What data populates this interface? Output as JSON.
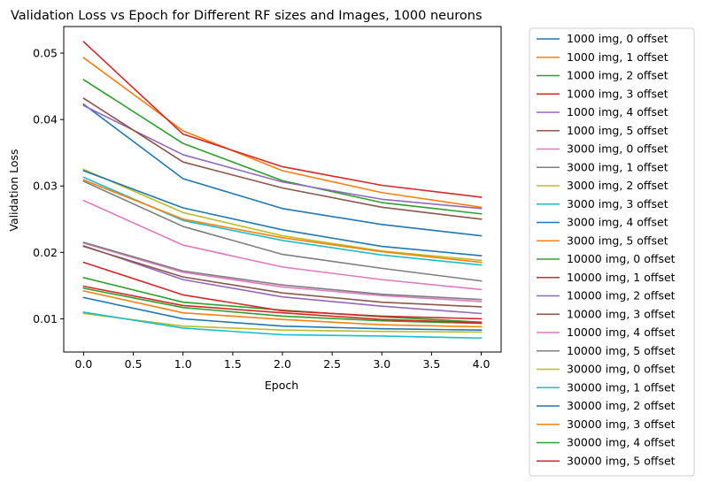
{
  "chart_data": {
    "type": "line",
    "title": "Validation Loss vs Epoch for Different RF sizes and Images, 1000 neurons",
    "xlabel": "Epoch",
    "ylabel": "Validation Loss",
    "xlim": [
      -0.2,
      4.2
    ],
    "ylim": [
      0.005,
      0.054
    ],
    "xticks": [
      0.0,
      0.5,
      1.0,
      1.5,
      2.0,
      2.5,
      3.0,
      3.5,
      4.0
    ],
    "xtick_labels": [
      "0.0",
      "0.5",
      "1.0",
      "1.5",
      "2.0",
      "2.5",
      "3.0",
      "3.5",
      "4.0"
    ],
    "yticks": [
      0.01,
      0.02,
      0.03,
      0.04,
      0.05
    ],
    "ytick_labels": [
      "0.01",
      "0.02",
      "0.03",
      "0.04",
      "0.05"
    ],
    "grid": false,
    "legend_position": "outside-right",
    "x": [
      0,
      1,
      2,
      3,
      4
    ],
    "series": [
      {
        "name": "1000 img, 0 offset",
        "color": "#1f77b4",
        "values": [
          0.0423,
          0.0311,
          0.0266,
          0.0242,
          0.0225
        ]
      },
      {
        "name": "1000 img, 1 offset",
        "color": "#ff7f0e",
        "values": [
          0.0493,
          0.0383,
          0.0323,
          0.029,
          0.0268
        ]
      },
      {
        "name": "1000 img, 2 offset",
        "color": "#2ca02c",
        "values": [
          0.046,
          0.0364,
          0.0308,
          0.0275,
          0.0258
        ]
      },
      {
        "name": "1000 img, 3 offset",
        "color": "#d62728",
        "values": [
          0.0517,
          0.0378,
          0.0329,
          0.0301,
          0.0283
        ]
      },
      {
        "name": "1000 img, 4 offset",
        "color": "#9467bd",
        "values": [
          0.0421,
          0.0347,
          0.0306,
          0.028,
          0.0266
        ]
      },
      {
        "name": "1000 img, 5 offset",
        "color": "#8c564b",
        "values": [
          0.0432,
          0.0336,
          0.0297,
          0.0268,
          0.025
        ]
      },
      {
        "name": "3000 img, 0 offset",
        "color": "#e377c2",
        "values": [
          0.0278,
          0.0211,
          0.0178,
          0.0159,
          0.0144
        ]
      },
      {
        "name": "3000 img, 1 offset",
        "color": "#7f7f7f",
        "values": [
          0.0307,
          0.0239,
          0.0197,
          0.0176,
          0.0157
        ]
      },
      {
        "name": "3000 img, 2 offset",
        "color": "#bcbd22",
        "values": [
          0.0325,
          0.026,
          0.0225,
          0.0202,
          0.0188
        ]
      },
      {
        "name": "3000 img, 3 offset",
        "color": "#17becf",
        "values": [
          0.0313,
          0.0248,
          0.0218,
          0.0196,
          0.0181
        ]
      },
      {
        "name": "3000 img, 4 offset",
        "color": "#1f77b4",
        "values": [
          0.0323,
          0.0267,
          0.0234,
          0.0209,
          0.0195
        ]
      },
      {
        "name": "3000 img, 5 offset",
        "color": "#ff7f0e",
        "values": [
          0.0309,
          0.025,
          0.0222,
          0.0201,
          0.0185
        ]
      },
      {
        "name": "10000 img, 0 offset",
        "color": "#2ca02c",
        "values": [
          0.0162,
          0.0125,
          0.0113,
          0.0103,
          0.0095
        ]
      },
      {
        "name": "10000 img, 1 offset",
        "color": "#d62728",
        "values": [
          0.0185,
          0.0136,
          0.0112,
          0.0104,
          0.01
        ]
      },
      {
        "name": "10000 img, 2 offset",
        "color": "#9467bd",
        "values": [
          0.021,
          0.0159,
          0.0133,
          0.0119,
          0.0108
        ]
      },
      {
        "name": "10000 img, 3 offset",
        "color": "#8c564b",
        "values": [
          0.0209,
          0.0163,
          0.0139,
          0.0125,
          0.0118
        ]
      },
      {
        "name": "10000 img, 4 offset",
        "color": "#e377c2",
        "values": [
          0.0214,
          0.017,
          0.0148,
          0.0135,
          0.0126
        ]
      },
      {
        "name": "10000 img, 5 offset",
        "color": "#7f7f7f",
        "values": [
          0.0215,
          0.0172,
          0.0151,
          0.0137,
          0.0129
        ]
      },
      {
        "name": "30000 img, 0 offset",
        "color": "#bcbd22",
        "values": [
          0.0108,
          0.0089,
          0.0083,
          0.0081,
          0.008
        ]
      },
      {
        "name": "30000 img, 1 offset",
        "color": "#17becf",
        "values": [
          0.011,
          0.0086,
          0.0076,
          0.0074,
          0.0071
        ]
      },
      {
        "name": "30000 img, 2 offset",
        "color": "#1f77b4",
        "values": [
          0.0132,
          0.01,
          0.0089,
          0.0085,
          0.0083
        ]
      },
      {
        "name": "30000 img, 3 offset",
        "color": "#ff7f0e",
        "values": [
          0.0142,
          0.0109,
          0.0099,
          0.0091,
          0.0088
        ]
      },
      {
        "name": "30000 img, 4 offset",
        "color": "#2ca02c",
        "values": [
          0.0146,
          0.0117,
          0.0104,
          0.0097,
          0.0093
        ]
      },
      {
        "name": "30000 img, 5 offset",
        "color": "#d62728",
        "values": [
          0.0149,
          0.012,
          0.0109,
          0.0099,
          0.0094
        ]
      }
    ]
  }
}
